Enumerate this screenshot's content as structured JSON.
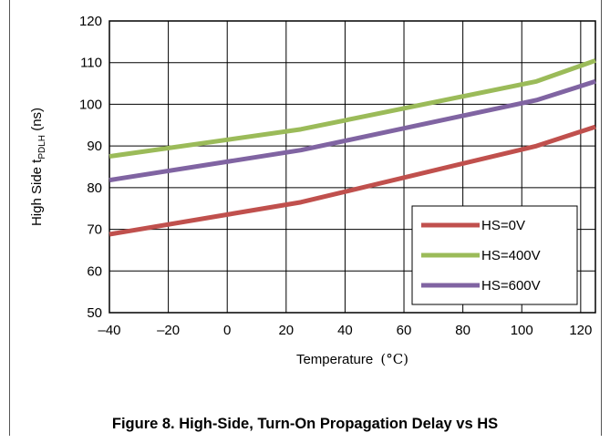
{
  "chart_data": {
    "type": "line",
    "xlabel": "Temperature",
    "xlabel_unit": "(°C)",
    "ylabel_prefix": "High Side t",
    "ylabel_subscript": "PDLH",
    "ylabel_suffix": " (ns)",
    "xlim": [
      -40,
      125
    ],
    "ylim": [
      50,
      120
    ],
    "x_ticks": [
      -40,
      -20,
      0,
      20,
      40,
      60,
      80,
      100,
      120
    ],
    "y_ticks": [
      50,
      60,
      70,
      80,
      90,
      100,
      110,
      120
    ],
    "grid": true,
    "legend_position": "bottom-right",
    "series": [
      {
        "name": "HS=0V",
        "color": "#c0504d",
        "x": [
          -40,
          25,
          105,
          125
        ],
        "y": [
          68.8,
          76.5,
          90.0,
          94.6
        ]
      },
      {
        "name": "HS=400V",
        "color": "#9bbb59",
        "x": [
          -40,
          25,
          105,
          125
        ],
        "y": [
          87.5,
          94.0,
          105.5,
          110.5
        ]
      },
      {
        "name": "HS=600V",
        "color": "#8064a2",
        "x": [
          -40,
          25,
          105,
          125
        ],
        "y": [
          81.8,
          89.0,
          101.0,
          105.5
        ]
      }
    ]
  },
  "caption": "Figure 8. High-Side, Turn-On Propagation Delay vs HS"
}
